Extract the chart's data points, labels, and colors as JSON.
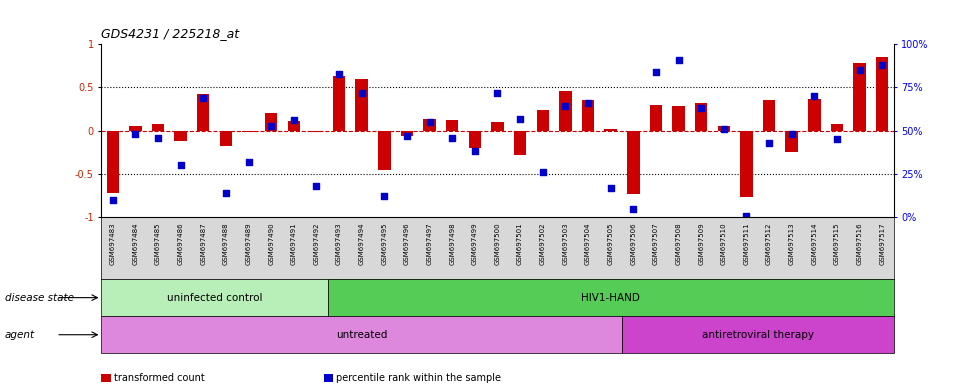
{
  "title": "GDS4231 / 225218_at",
  "samples": [
    "GSM697483",
    "GSM697484",
    "GSM697485",
    "GSM697486",
    "GSM697487",
    "GSM697488",
    "GSM697489",
    "GSM697490",
    "GSM697491",
    "GSM697492",
    "GSM697493",
    "GSM697494",
    "GSM697495",
    "GSM697496",
    "GSM697497",
    "GSM697498",
    "GSM697499",
    "GSM697500",
    "GSM697501",
    "GSM697502",
    "GSM697503",
    "GSM697504",
    "GSM697505",
    "GSM697506",
    "GSM697507",
    "GSM697508",
    "GSM697509",
    "GSM697510",
    "GSM697511",
    "GSM697512",
    "GSM697513",
    "GSM697514",
    "GSM697515",
    "GSM697516",
    "GSM697517"
  ],
  "bar_values": [
    -0.72,
    0.05,
    0.08,
    -0.12,
    0.42,
    -0.18,
    -0.02,
    0.2,
    0.11,
    -0.02,
    0.63,
    0.6,
    -0.45,
    -0.06,
    0.14,
    0.12,
    -0.2,
    0.1,
    -0.28,
    0.24,
    0.46,
    0.35,
    0.02,
    -0.73,
    0.3,
    0.28,
    0.32,
    0.06,
    -0.77,
    0.35,
    -0.25,
    0.37,
    0.08,
    0.78,
    0.85
  ],
  "dot_values_pct": [
    10,
    48,
    46,
    30,
    69,
    14,
    32,
    53,
    56,
    18,
    83,
    72,
    12,
    47,
    55,
    46,
    38,
    72,
    57,
    26,
    64,
    66,
    17,
    5,
    84,
    91,
    63,
    51,
    1,
    43,
    48,
    70,
    45,
    85,
    88
  ],
  "bar_color": "#cc0000",
  "dot_color": "#0000cc",
  "ylim_left": [
    -1.0,
    1.0
  ],
  "ylim_right": [
    0,
    100
  ],
  "yticks_left": [
    -1.0,
    -0.5,
    0.0,
    0.5,
    1.0
  ],
  "ytick_labels_left": [
    "-1",
    "-0.5",
    "0",
    "0.5",
    "1"
  ],
  "yticks_right_pct": [
    0,
    25,
    50,
    75,
    100
  ],
  "ytick_labels_right": [
    "0%",
    "25%",
    "50%",
    "75%",
    "100%"
  ],
  "hlines_dotted": [
    -0.5,
    0.5
  ],
  "hline_zero": 0.0,
  "disease_state_groups": [
    {
      "label": "uninfected control",
      "start": 0,
      "end": 10,
      "color": "#b8eeb8"
    },
    {
      "label": "HIV1-HAND",
      "start": 10,
      "end": 35,
      "color": "#55cc55"
    }
  ],
  "agent_groups": [
    {
      "label": "untreated",
      "start": 0,
      "end": 23,
      "color": "#dd88dd"
    },
    {
      "label": "antiretroviral therapy",
      "start": 23,
      "end": 35,
      "color": "#cc44cc"
    }
  ],
  "disease_state_label": "disease state",
  "agent_label": "agent",
  "legend_items": [
    {
      "color": "#cc0000",
      "label": "transformed count"
    },
    {
      "color": "#0000cc",
      "label": "percentile rank within the sample"
    }
  ],
  "bar_width": 0.55,
  "dot_size": 18,
  "n_samples": 35,
  "bg_xtick_color": "#d8d8d8"
}
